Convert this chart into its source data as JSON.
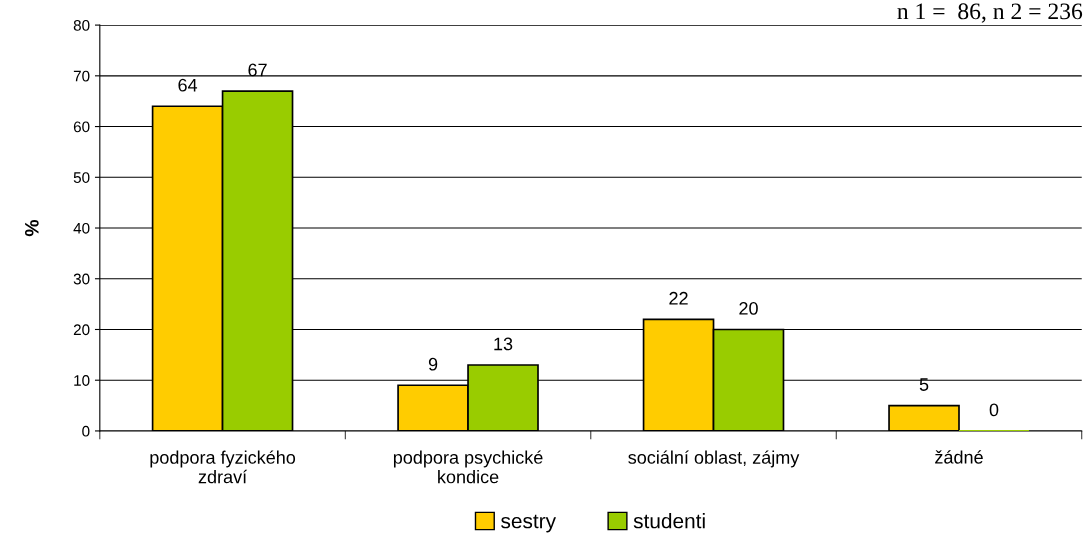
{
  "chart_data": {
    "type": "bar",
    "categories": [
      "podpora fyzického\nzdraví",
      "podpora psychické\nkondice",
      "sociální oblast, zájmy",
      "žádné"
    ],
    "series": [
      {
        "name": "sestry",
        "color": "#ffcc00",
        "values": [
          64,
          9,
          22,
          5
        ]
      },
      {
        "name": "studenti",
        "color": "#99cc00",
        "values": [
          67,
          13,
          20,
          0
        ]
      }
    ],
    "ylabel": "%",
    "ylim": [
      0,
      80
    ],
    "yticks": [
      0,
      10,
      20,
      30,
      40,
      50,
      60,
      70,
      80
    ],
    "grid": "y",
    "legend": "bottom",
    "data_labels": true,
    "annotations": [
      "n 1 =  86, n 2 = 236"
    ]
  }
}
